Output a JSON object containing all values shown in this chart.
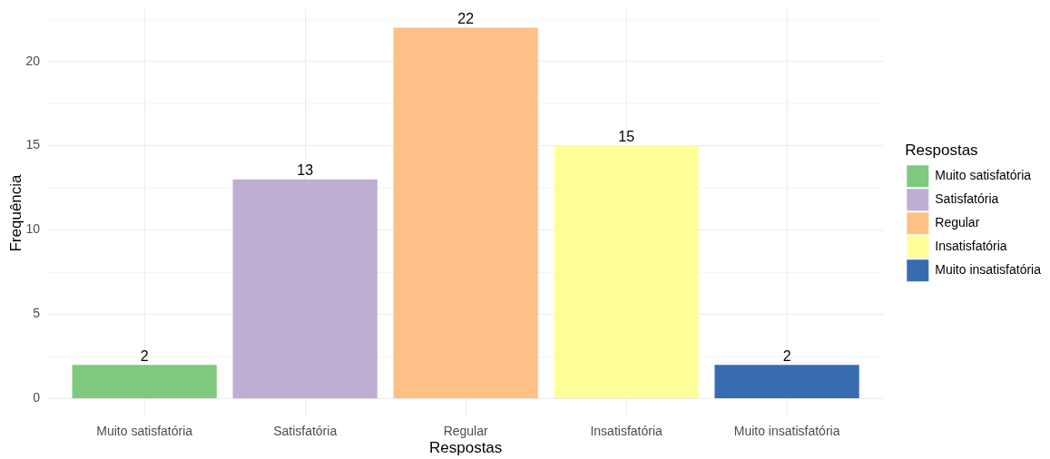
{
  "chart_data": {
    "type": "bar",
    "xlabel": "Respostas",
    "ylabel": "Frequência",
    "legend_title": "Respostas",
    "categories": [
      "Muito satisfatória",
      "Satisfatória",
      "Regular",
      "Insatisfatória",
      "Muito insatisfatória"
    ],
    "series": [
      {
        "name": "Muito satisfatória",
        "color": "#7fc97f",
        "values": [
          2,
          null,
          null,
          null,
          null
        ]
      },
      {
        "name": "Satisfatória",
        "color": "#beaed4",
        "values": [
          null,
          13,
          null,
          null,
          null
        ]
      },
      {
        "name": "Regular",
        "color": "#fdc086",
        "values": [
          null,
          null,
          22,
          null,
          null
        ]
      },
      {
        "name": "Insatisfatória",
        "color": "#ffff99",
        "values": [
          null,
          null,
          null,
          15,
          null
        ]
      },
      {
        "name": "Muito insatisfatória",
        "color": "#386cb0",
        "values": [
          null,
          null,
          null,
          null,
          2
        ]
      }
    ],
    "ylim": [
      -1.1,
      23.1
    ],
    "yticks": [
      0,
      {
        "value": 2.5,
        "label": null
      },
      5,
      {
        "value": 7.5,
        "label": null
      },
      10,
      {
        "value": 12.5,
        "label": null
      },
      15,
      {
        "value": 17.5,
        "label": null
      },
      20,
      {
        "value": 22.5,
        "label": null
      }
    ],
    "grid": true,
    "legend": "right",
    "data_labels": true
  }
}
